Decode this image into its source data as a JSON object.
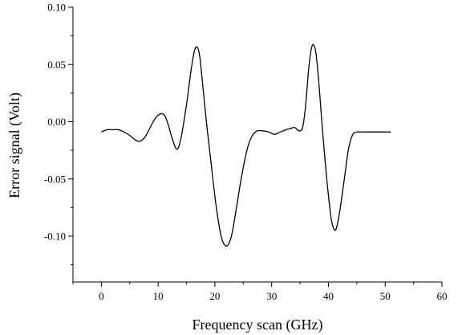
{
  "chart_data": {
    "type": "line",
    "xlabel": "Frequency scan (GHz)",
    "ylabel": "Error signal (Volt)",
    "xlim": [
      -5,
      60
    ],
    "ylim": [
      -0.14,
      0.1
    ],
    "x_ticks": [
      0,
      10,
      20,
      30,
      40,
      50,
      60
    ],
    "y_ticks": [
      -0.1,
      -0.05,
      0.0,
      0.05,
      0.1
    ],
    "x_tick_labels": [
      "0",
      "10",
      "20",
      "30",
      "40",
      "50",
      "60"
    ],
    "y_tick_labels": [
      "-0.10",
      "-0.05",
      "0.00",
      "0.05",
      "0.10"
    ],
    "grid": false,
    "legend": "none",
    "series": [
      {
        "color": "#000000",
        "x": [
          0,
          1,
          2,
          3,
          4,
          5,
          6,
          6.8,
          7.6,
          8.5,
          9.5,
          10.5,
          11.2,
          11.8,
          12.5,
          13.3,
          14.0,
          15.0,
          15.8,
          16.4,
          16.9,
          17.3,
          17.8,
          18.5,
          19.3,
          20.2,
          21.1,
          21.8,
          22.4,
          23.0,
          23.8,
          24.8,
          25.8,
          26.6,
          27.5,
          28.5,
          29.5,
          30.5,
          31.5,
          32.5,
          33.3,
          34.0,
          34.5,
          35.0,
          35.5,
          36.0,
          36.5,
          37.0,
          37.4,
          37.8,
          38.3,
          39.0,
          39.8,
          40.5,
          41.0,
          41.4,
          42.0,
          42.8,
          43.5,
          44.2,
          45.0,
          46.0,
          48.0,
          51.0
        ],
        "y": [
          -0.009,
          -0.007,
          -0.007,
          -0.007,
          -0.009,
          -0.012,
          -0.016,
          -0.017,
          -0.014,
          -0.006,
          0.003,
          0.007,
          0.005,
          -0.003,
          -0.015,
          -0.024,
          -0.015,
          0.015,
          0.045,
          0.062,
          0.065,
          0.058,
          0.035,
          0.0,
          -0.035,
          -0.073,
          -0.1,
          -0.108,
          -0.107,
          -0.098,
          -0.075,
          -0.045,
          -0.022,
          -0.012,
          -0.008,
          -0.008,
          -0.009,
          -0.011,
          -0.009,
          -0.007,
          -0.006,
          -0.005,
          -0.007,
          -0.008,
          -0.004,
          0.015,
          0.045,
          0.064,
          0.067,
          0.06,
          0.035,
          -0.01,
          -0.055,
          -0.085,
          -0.094,
          -0.093,
          -0.078,
          -0.05,
          -0.025,
          -0.012,
          -0.009,
          -0.009,
          -0.009,
          -0.009
        ]
      }
    ]
  }
}
